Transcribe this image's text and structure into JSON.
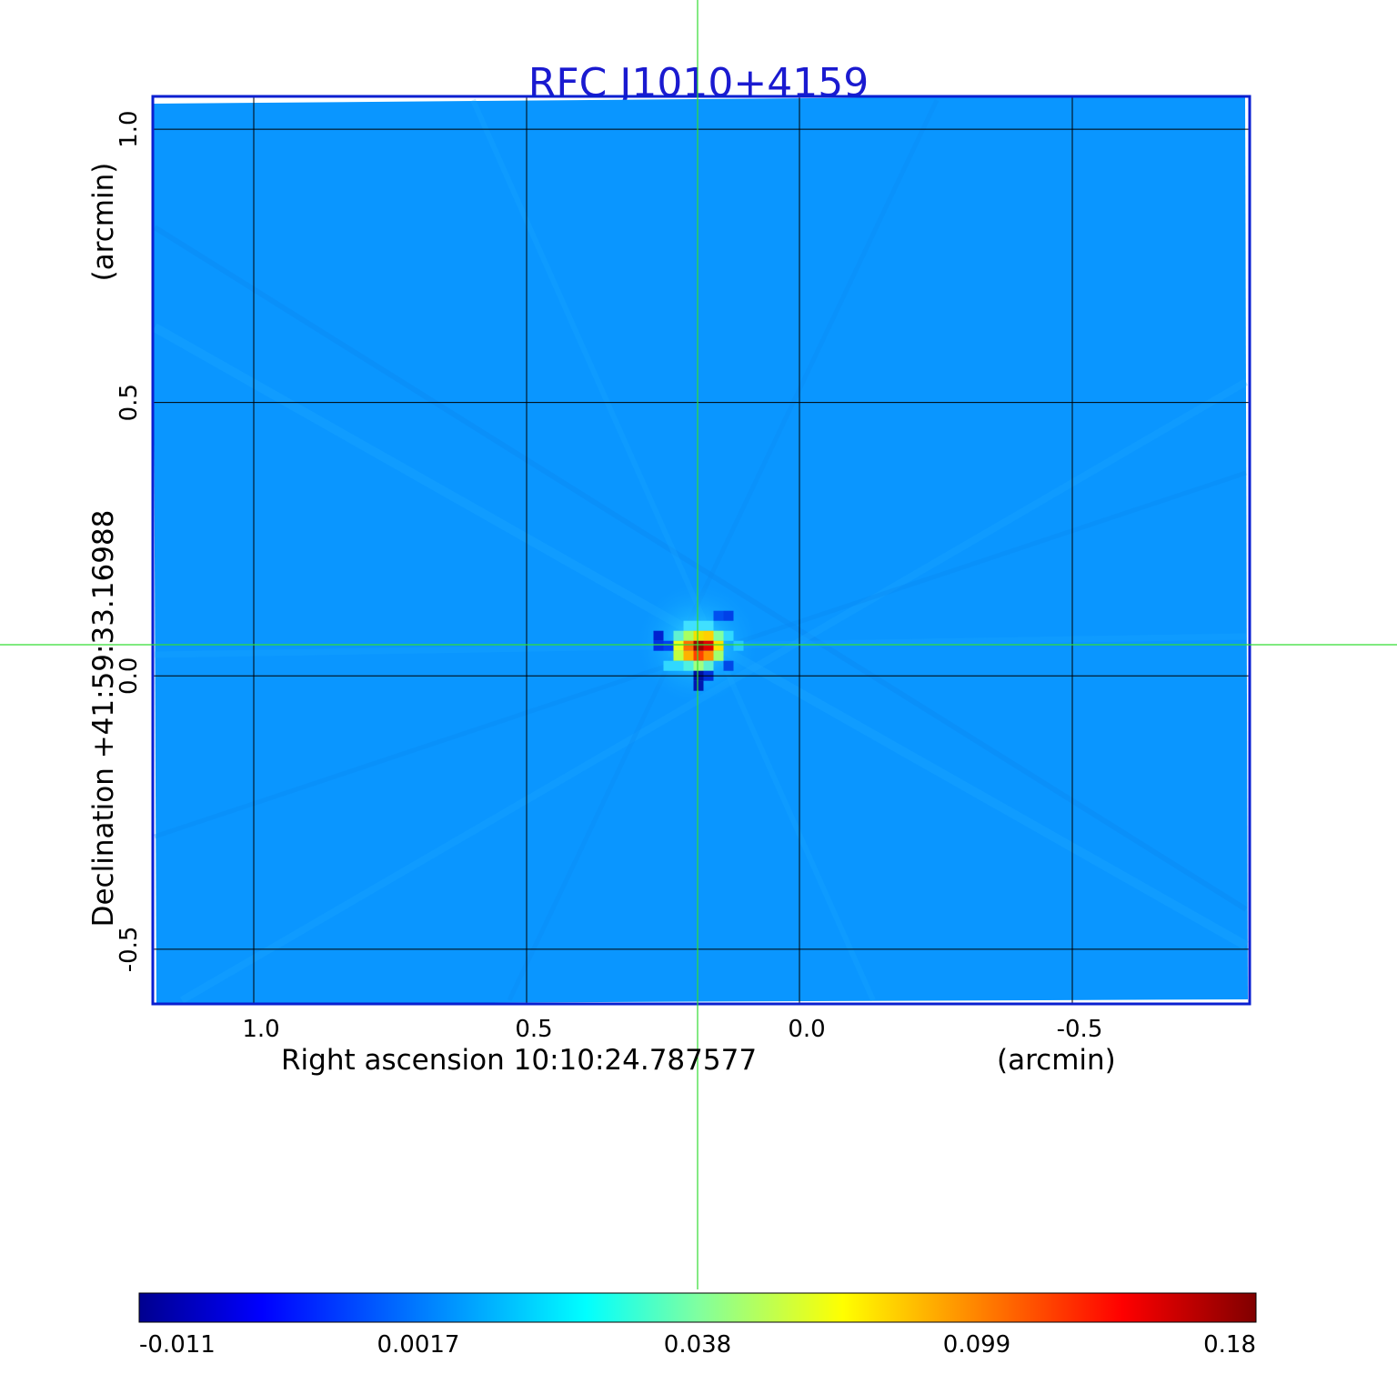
{
  "chart_data": {
    "type": "heatmap",
    "title": "RFC J1010+4159",
    "xlabel": "Right ascension  10:10:24.787577",
    "xunit": "(arcmin)",
    "ylabel": "Declination  +41:59:33.16988",
    "yunit": "(arcmin)",
    "x_ticks": [
      1.0,
      0.5,
      0.0,
      -0.5
    ],
    "x_tick_labels": [
      "1.0",
      "0.5",
      "0.0",
      "-0.5"
    ],
    "y_ticks": [
      1.0,
      0.5,
      0.0,
      -0.5
    ],
    "y_tick_labels": [
      "1.0",
      "0.5",
      "0.0",
      "-0.5"
    ],
    "xlim": [
      1.185,
      -0.825
    ],
    "ylim": [
      -0.6,
      1.06
    ],
    "grid": true,
    "crosshair": {
      "x": 0.185,
      "y": 0.055
    },
    "peak": {
      "x": 0.185,
      "y": 0.055,
      "value": 0.18
    },
    "colormap": "jet",
    "colorbar": {
      "tick_labels": [
        "-0.011",
        "0.0017",
        "0.038",
        "0.099",
        "0.18"
      ],
      "min": -0.011,
      "max": 0.18
    }
  },
  "colors": {
    "title": "#1a1ad0",
    "frame": "#0a1fd0",
    "grid": "#000000",
    "crosshair": "#33dd33",
    "background_field": "#0a96ff"
  }
}
